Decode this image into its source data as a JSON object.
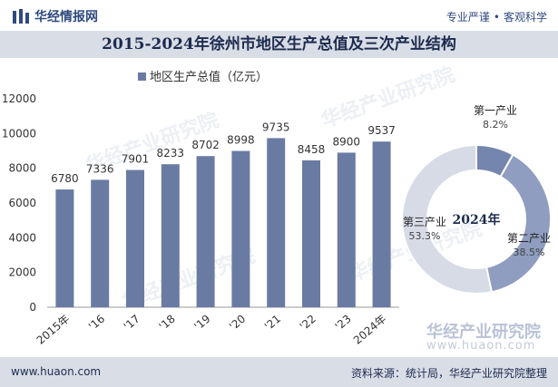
{
  "header": {
    "logo_text": "华经情报网",
    "slogan_left": "专业严谨",
    "slogan_sep": "•",
    "slogan_right": "客观科学"
  },
  "title": "2015-2024年徐州市地区生产总值及三次产业结构",
  "footer": {
    "url": "www.huaon.com",
    "source": "资料来源：统计局，华经产业研究院整理"
  },
  "watermark": {
    "brand": "华经产业研究院",
    "url": "www.huaon.com"
  },
  "colors": {
    "bar": "#6a7ba3",
    "primary": "#7586ae",
    "secondary": "#8f9dc0",
    "tertiary": "#d6dbe6",
    "title_bg": "#d9dde6"
  },
  "chart_data": [
    {
      "type": "bar",
      "legend": "地区生产总值（亿元）",
      "legend_position": "top",
      "categories": [
        "2015年",
        "'16",
        "'17",
        "'18",
        "'19",
        "'20",
        "'21",
        "'22",
        "'23",
        "2024年"
      ],
      "values": [
        6780,
        7336,
        7901,
        8233,
        8702,
        8998,
        9735,
        8458,
        8900,
        9537
      ],
      "yticks": [
        "0",
        "2000",
        "4000",
        "6000",
        "8000",
        "10000",
        "12000"
      ],
      "ylim": [
        0,
        12000
      ],
      "grid": false
    },
    {
      "type": "pie",
      "center_label": "2024年",
      "slices": [
        {
          "name": "第一产业",
          "value": 8.2,
          "label": "8.2%"
        },
        {
          "name": "第二产业",
          "value": 38.5,
          "label": "38.5%"
        },
        {
          "name": "第三产业",
          "value": 53.3,
          "label": "53.3%"
        }
      ]
    }
  ]
}
